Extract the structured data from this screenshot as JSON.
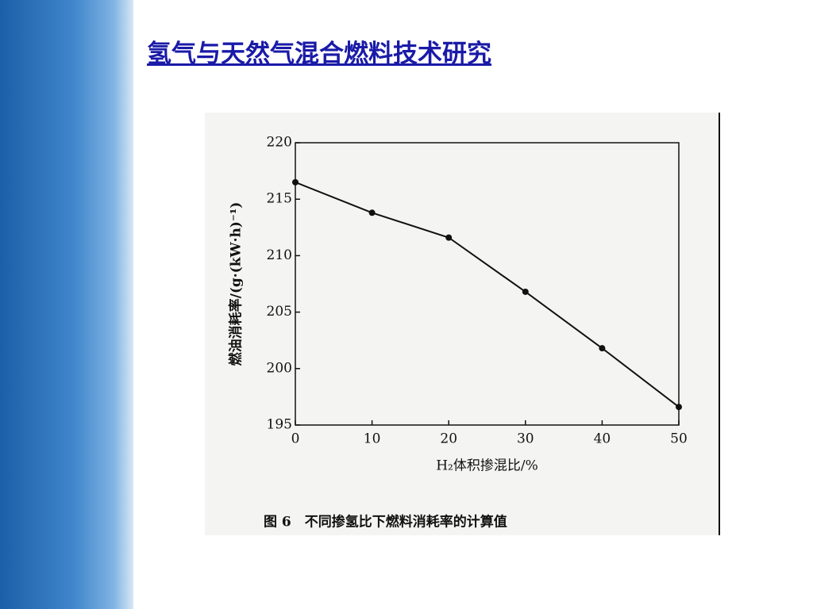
{
  "slide_title": "氢气与天然气混合燃料技术研究",
  "chart_data": {
    "type": "line",
    "x_label": "H₂体积掺混比/%",
    "y_label": "燃油消耗率/(g·(kW·h)⁻¹)",
    "caption": "图 6　不同掺氢比下燃料消耗率的计算值",
    "x": [
      0,
      10,
      20,
      30,
      40,
      50
    ],
    "values": [
      216.5,
      213.8,
      211.6,
      206.8,
      201.8,
      196.6
    ],
    "color": "#111111",
    "xlim": [
      0,
      50
    ],
    "xticks": [
      0,
      10,
      20,
      30,
      40,
      50
    ],
    "ylim": [
      195,
      220
    ],
    "yticks": [
      195,
      200,
      205,
      210,
      215,
      220
    ]
  }
}
